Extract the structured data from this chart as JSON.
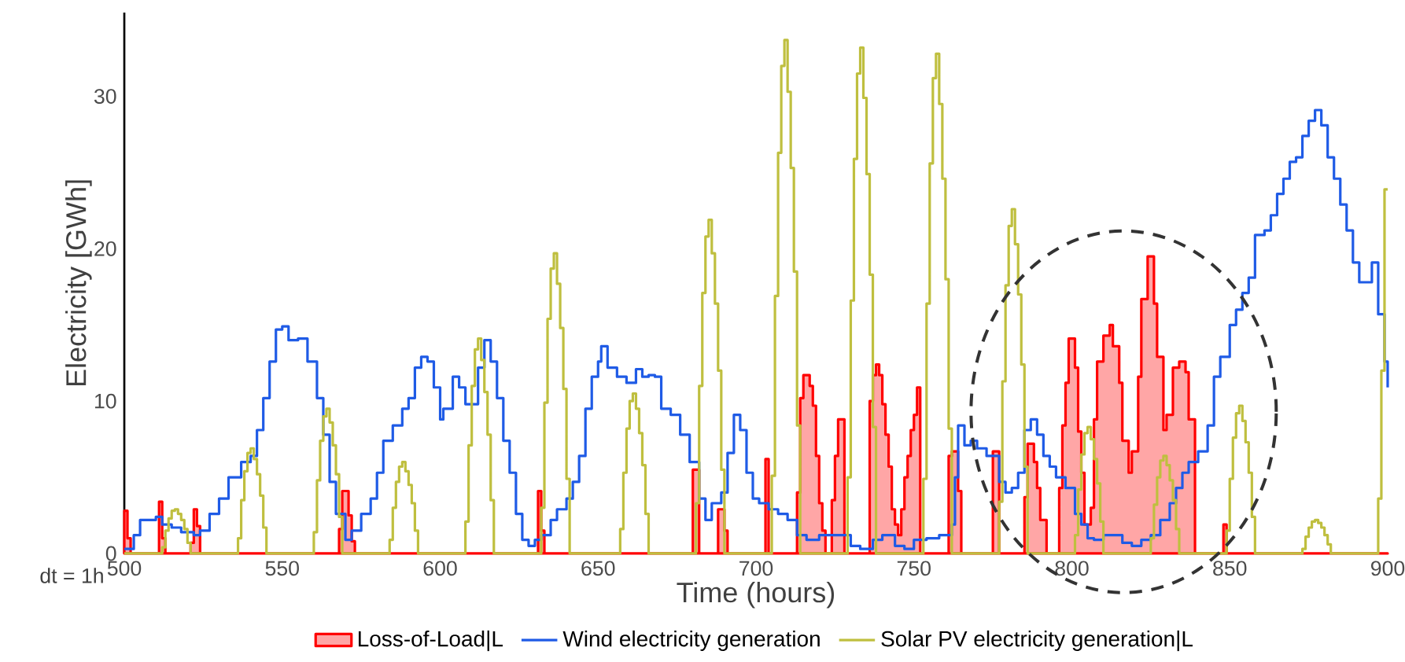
{
  "chart_data": {
    "type": "step",
    "xlabel": "Time (hours)",
    "ylabel": "Electricity [GWh]",
    "annotations": [
      "dt = 1h"
    ],
    "xlim": [
      500,
      900
    ],
    "ylim": [
      0,
      35.5
    ],
    "xticks": [
      500,
      550,
      600,
      650,
      700,
      750,
      800,
      850,
      900
    ],
    "yticks": [
      0,
      10,
      20,
      30
    ],
    "legend": "bottom",
    "series": [
      {
        "name": "Loss-of-Load|L",
        "type": "area",
        "color": "#ff0000",
        "x": [
          500,
          501,
          502,
          511,
          512,
          513,
          521,
          522,
          523,
          524,
          568,
          569,
          571,
          572,
          573,
          631,
          632,
          633,
          680,
          682,
          688,
          690,
          691,
          703,
          704,
          713,
          714,
          715,
          717,
          718,
          719,
          720,
          721,
          722,
          724,
          725,
          726,
          728,
          736,
          737,
          738,
          739,
          740,
          741,
          742,
          743,
          744,
          745,
          746,
          747,
          748,
          749,
          750,
          751,
          752,
          761,
          762,
          764,
          765,
          775,
          777,
          785,
          786,
          788,
          789,
          790,
          792,
          796,
          797,
          798,
          799,
          801,
          802,
          803,
          804,
          806,
          807,
          808,
          810,
          812,
          813,
          815,
          816,
          818,
          819,
          821,
          822,
          824,
          826,
          827,
          829,
          830,
          832,
          834,
          836,
          837,
          839,
          848,
          849,
          900
        ],
        "values": [
          2.8,
          1.0,
          0,
          3.4,
          1.0,
          0,
          0.7,
          2.9,
          1.8,
          0,
          1.6,
          4.1,
          2.5,
          0.8,
          0,
          4.1,
          1.5,
          0,
          5.5,
          0,
          2.9,
          1.5,
          0,
          6.2,
          0,
          4.0,
          10.2,
          11.7,
          11.0,
          9.7,
          6.4,
          3.3,
          1.5,
          0,
          3.5,
          6.4,
          8.8,
          0,
          10.0,
          11.7,
          12.4,
          11.7,
          9.8,
          7.8,
          5.7,
          2.9,
          1.9,
          1.2,
          2.9,
          5.0,
          6.4,
          8.1,
          9.1,
          10.9,
          0,
          6.4,
          6.7,
          4.1,
          0,
          6.7,
          0,
          3.7,
          7.2,
          6.0,
          4.3,
          2.2,
          0,
          4.3,
          8.4,
          11.2,
          14.1,
          12.2,
          8.0,
          5.3,
          1.9,
          3.0,
          8.8,
          12.6,
          14.3,
          15.0,
          13.6,
          11.2,
          7.4,
          5.3,
          6.7,
          11.6,
          16.7,
          19.5,
          16.4,
          12.9,
          8.1,
          9.1,
          12.2,
          12.6,
          11.9,
          8.8,
          0,
          1.9,
          0,
          0
        ]
      },
      {
        "name": "Wind electricity generation",
        "color": "#1f5be6",
        "x": [
          500,
          503,
          505,
          510,
          512,
          515,
          518,
          522,
          524,
          527,
          530,
          533,
          537,
          540,
          542,
          544,
          546,
          548,
          550,
          552,
          555,
          558,
          561,
          563,
          565,
          567,
          570,
          572,
          575,
          578,
          580,
          582,
          585,
          588,
          590,
          592,
          594,
          596,
          598,
          600,
          601,
          604,
          606,
          608,
          610,
          612,
          614,
          616,
          618,
          620,
          622,
          624,
          626,
          628,
          630,
          632,
          635,
          637,
          640,
          642,
          644,
          646,
          648,
          650,
          651,
          653,
          656,
          659,
          662,
          664,
          666,
          668,
          670,
          673,
          676,
          679,
          682,
          684,
          686,
          689,
          691,
          693,
          695,
          697,
          699,
          701,
          704,
          707,
          710,
          713,
          716,
          720,
          725,
          730,
          733,
          737,
          740,
          744,
          747,
          750,
          754,
          758,
          762,
          763,
          764,
          766,
          768,
          770,
          773,
          775,
          777,
          779,
          781,
          783,
          785,
          787,
          789,
          791,
          793,
          795,
          798,
          801,
          803,
          805,
          807,
          810,
          813,
          816,
          819,
          822,
          825,
          828,
          831,
          833,
          835,
          837,
          840,
          843,
          845,
          847,
          850,
          852,
          854,
          856,
          858,
          861,
          863,
          865,
          867,
          869,
          871,
          873,
          875,
          877,
          879,
          881,
          883,
          885,
          887,
          889,
          891,
          893,
          895,
          897,
          899,
          900
        ],
        "values": [
          0.3,
          1.2,
          2.2,
          2.4,
          1.9,
          1.7,
          1.4,
          1.2,
          1.5,
          2.6,
          3.6,
          5.0,
          6.0,
          6.4,
          8.1,
          10.2,
          12.6,
          14.7,
          14.9,
          14.0,
          14.1,
          12.6,
          10.2,
          7.8,
          4.7,
          2.6,
          0.9,
          1.5,
          2.6,
          3.6,
          5.3,
          7.4,
          8.4,
          9.5,
          10.2,
          12.2,
          12.9,
          12.6,
          10.9,
          8.8,
          9.5,
          11.6,
          10.9,
          9.8,
          9.8,
          12.2,
          14.0,
          12.6,
          10.2,
          7.4,
          5.3,
          2.6,
          0.9,
          0.5,
          0.9,
          1.2,
          2.2,
          2.9,
          3.6,
          4.7,
          6.4,
          9.5,
          11.6,
          12.6,
          13.6,
          12.2,
          11.6,
          11.2,
          12.1,
          11.6,
          11.7,
          11.6,
          9.5,
          9.1,
          7.8,
          6.0,
          3.6,
          2.2,
          3.3,
          4.0,
          6.6,
          9.1,
          8.1,
          5.3,
          3.6,
          3.3,
          2.9,
          2.6,
          2.2,
          1.2,
          0.9,
          1.2,
          1.2,
          0.5,
          0.3,
          0.9,
          1.2,
          0.5,
          0.3,
          0.9,
          1.0,
          1.2,
          1.9,
          5.0,
          8.4,
          7.1,
          7.4,
          6.9,
          6.4,
          6.4,
          4.7,
          4.0,
          4.3,
          5.3,
          8.1,
          8.8,
          7.8,
          6.4,
          5.7,
          5.0,
          4.3,
          2.6,
          1.9,
          1.0,
          0.9,
          1.2,
          1.2,
          0.7,
          0.5,
          0.9,
          1.2,
          2.2,
          3.3,
          4.3,
          5.3,
          6.0,
          6.7,
          8.4,
          11.6,
          12.9,
          15.0,
          16.0,
          17.1,
          18.1,
          20.9,
          21.2,
          22.2,
          23.6,
          24.6,
          25.7,
          26.0,
          27.4,
          28.4,
          29.1,
          28.1,
          26.0,
          24.6,
          22.9,
          21.2,
          19.1,
          17.8,
          17.8,
          19.1,
          15.7,
          12.6,
          10.9
        ]
      },
      {
        "name": "Solar PV electricity generation|L",
        "color": "#bfbf3f",
        "x": [
          500,
          512,
          513,
          514,
          515,
          516,
          517,
          518,
          519,
          520,
          521,
          536,
          537,
          538,
          539,
          540,
          541,
          542,
          543,
          544,
          545,
          560,
          561,
          562,
          563,
          564,
          565,
          566,
          567,
          568,
          569,
          584,
          585,
          586,
          587,
          588,
          589,
          590,
          591,
          592,
          593,
          608,
          609,
          610,
          611,
          612,
          613,
          614,
          615,
          616,
          617,
          632,
          633,
          634,
          635,
          636,
          637,
          638,
          639,
          640,
          641,
          657,
          658,
          659,
          660,
          661,
          662,
          663,
          664,
          665,
          666,
          681,
          682,
          683,
          684,
          685,
          686,
          687,
          688,
          689,
          690,
          705,
          706,
          707,
          708,
          709,
          710,
          711,
          712,
          713,
          714,
          729,
          730,
          731,
          732,
          733,
          734,
          735,
          736,
          737,
          738,
          753,
          754,
          755,
          756,
          757,
          758,
          759,
          760,
          761,
          762,
          777,
          778,
          779,
          780,
          781,
          782,
          783,
          784,
          785,
          786,
          801,
          802,
          803,
          804,
          805,
          806,
          807,
          808,
          809,
          810,
          825,
          826,
          827,
          828,
          829,
          830,
          831,
          832,
          833,
          834,
          849,
          850,
          851,
          852,
          853,
          854,
          855,
          856,
          857,
          858,
          873,
          874,
          875,
          876,
          877,
          878,
          879,
          880,
          881,
          882,
          897,
          898,
          899,
          900
        ],
        "values": [
          0,
          0.4,
          1.5,
          2.3,
          2.8,
          2.9,
          2.6,
          2.2,
          1.6,
          0.7,
          0,
          1.0,
          3.5,
          5.4,
          6.6,
          6.9,
          6.2,
          5.2,
          3.8,
          1.7,
          0,
          1.4,
          4.8,
          7.4,
          9.0,
          9.5,
          8.6,
          7.1,
          5.2,
          2.4,
          0,
          0.9,
          3.0,
          4.7,
          5.7,
          6.0,
          5.4,
          4.5,
          3.3,
          1.5,
          0,
          2.1,
          7.1,
          11.0,
          13.4,
          14.1,
          12.7,
          10.6,
          7.8,
          3.5,
          0,
          3.0,
          9.9,
          15.4,
          18.7,
          19.7,
          17.7,
          14.8,
          10.8,
          4.9,
          0,
          1.6,
          5.3,
          8.2,
          10.0,
          10.5,
          9.5,
          7.9,
          5.8,
          2.6,
          0,
          3.3,
          11.0,
          17.1,
          20.8,
          21.9,
          19.7,
          16.4,
          12.0,
          5.5,
          0,
          5.1,
          16.9,
          26.3,
          32.0,
          33.7,
          30.3,
          25.3,
          18.5,
          8.4,
          0,
          5.0,
          16.6,
          25.9,
          31.5,
          33.2,
          29.9,
          24.9,
          18.3,
          8.3,
          0,
          4.9,
          16.4,
          25.6,
          31.2,
          32.8,
          29.5,
          24.6,
          18.0,
          8.2,
          0,
          3.4,
          11.3,
          17.6,
          21.5,
          22.6,
          20.3,
          17.0,
          12.4,
          5.7,
          0,
          1.2,
          4.2,
          6.5,
          7.9,
          8.3,
          7.5,
          6.2,
          4.6,
          2.1,
          0,
          1.0,
          3.2,
          5.0,
          6.1,
          6.4,
          5.8,
          4.8,
          3.5,
          1.6,
          0,
          1.5,
          4.9,
          7.6,
          9.2,
          9.7,
          8.7,
          7.3,
          5.3,
          2.4,
          0,
          0.3,
          1.1,
          1.7,
          2.1,
          2.2,
          2.0,
          1.7,
          1.2,
          0.6,
          0,
          3.6,
          12.0,
          23.9,
          23.9
        ]
      }
    ]
  }
}
